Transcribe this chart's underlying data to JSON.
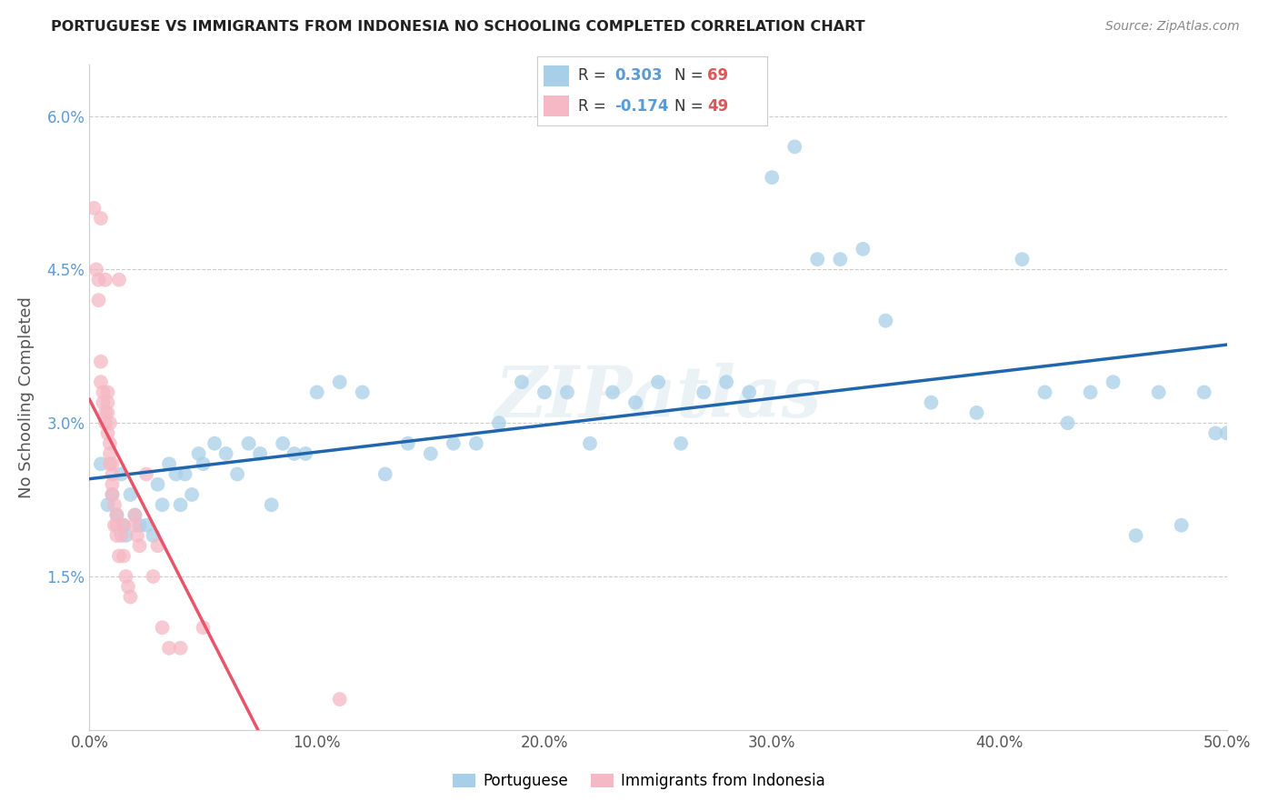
{
  "title": "PORTUGUESE VS IMMIGRANTS FROM INDONESIA NO SCHOOLING COMPLETED CORRELATION CHART",
  "source": "Source: ZipAtlas.com",
  "ylabel": "No Schooling Completed",
  "xlim": [
    0,
    0.5
  ],
  "ylim": [
    0,
    0.065
  ],
  "xticks": [
    0.0,
    0.1,
    0.2,
    0.3,
    0.4,
    0.5
  ],
  "yticks": [
    0.0,
    0.015,
    0.03,
    0.045,
    0.06
  ],
  "ytick_labels": [
    "",
    "1.5%",
    "3.0%",
    "4.5%",
    "6.0%"
  ],
  "xtick_labels": [
    "0.0%",
    "10.0%",
    "20.0%",
    "30.0%",
    "40.0%",
    "50.0%"
  ],
  "blue_color": "#a8cfe8",
  "pink_color": "#f5b8c4",
  "blue_line_color": "#2166ac",
  "pink_line_color": "#e8546a",
  "pink_line_dashed_color": "#f5b8c4",
  "legend_R1": "0.303",
  "legend_N1": "69",
  "legend_R2": "-0.174",
  "legend_N2": "49",
  "watermark": "ZIPatlas",
  "blue_x": [
    0.005,
    0.008,
    0.01,
    0.012,
    0.014,
    0.015,
    0.016,
    0.018,
    0.02,
    0.022,
    0.025,
    0.028,
    0.03,
    0.032,
    0.035,
    0.038,
    0.04,
    0.042,
    0.045,
    0.048,
    0.05,
    0.055,
    0.06,
    0.065,
    0.07,
    0.075,
    0.08,
    0.085,
    0.09,
    0.095,
    0.1,
    0.11,
    0.12,
    0.13,
    0.14,
    0.15,
    0.16,
    0.17,
    0.18,
    0.19,
    0.2,
    0.21,
    0.22,
    0.23,
    0.24,
    0.25,
    0.26,
    0.27,
    0.28,
    0.29,
    0.3,
    0.31,
    0.32,
    0.33,
    0.34,
    0.35,
    0.37,
    0.39,
    0.41,
    0.42,
    0.43,
    0.44,
    0.45,
    0.46,
    0.47,
    0.48,
    0.49,
    0.495,
    0.5
  ],
  "blue_y": [
    0.026,
    0.022,
    0.023,
    0.021,
    0.025,
    0.02,
    0.019,
    0.023,
    0.021,
    0.02,
    0.02,
    0.019,
    0.024,
    0.022,
    0.026,
    0.025,
    0.022,
    0.025,
    0.023,
    0.027,
    0.026,
    0.028,
    0.027,
    0.025,
    0.028,
    0.027,
    0.022,
    0.028,
    0.027,
    0.027,
    0.033,
    0.034,
    0.033,
    0.025,
    0.028,
    0.027,
    0.028,
    0.028,
    0.03,
    0.034,
    0.033,
    0.033,
    0.028,
    0.033,
    0.032,
    0.034,
    0.028,
    0.033,
    0.034,
    0.033,
    0.054,
    0.057,
    0.046,
    0.046,
    0.047,
    0.04,
    0.032,
    0.031,
    0.046,
    0.033,
    0.03,
    0.033,
    0.034,
    0.019,
    0.033,
    0.02,
    0.033,
    0.029,
    0.029
  ],
  "pink_x": [
    0.002,
    0.003,
    0.004,
    0.004,
    0.005,
    0.005,
    0.005,
    0.006,
    0.006,
    0.007,
    0.007,
    0.007,
    0.008,
    0.008,
    0.008,
    0.008,
    0.009,
    0.009,
    0.009,
    0.009,
    0.01,
    0.01,
    0.01,
    0.01,
    0.011,
    0.011,
    0.012,
    0.012,
    0.012,
    0.013,
    0.013,
    0.014,
    0.015,
    0.015,
    0.016,
    0.017,
    0.018,
    0.02,
    0.02,
    0.021,
    0.022,
    0.025,
    0.028,
    0.03,
    0.032,
    0.035,
    0.04,
    0.05,
    0.11
  ],
  "pink_y": [
    0.051,
    0.045,
    0.044,
    0.042,
    0.036,
    0.034,
    0.05,
    0.033,
    0.032,
    0.031,
    0.03,
    0.044,
    0.033,
    0.032,
    0.031,
    0.029,
    0.03,
    0.028,
    0.027,
    0.026,
    0.026,
    0.025,
    0.024,
    0.023,
    0.022,
    0.02,
    0.021,
    0.02,
    0.019,
    0.044,
    0.017,
    0.019,
    0.02,
    0.017,
    0.015,
    0.014,
    0.013,
    0.021,
    0.02,
    0.019,
    0.018,
    0.025,
    0.015,
    0.018,
    0.01,
    0.008,
    0.008,
    0.01,
    0.003
  ]
}
